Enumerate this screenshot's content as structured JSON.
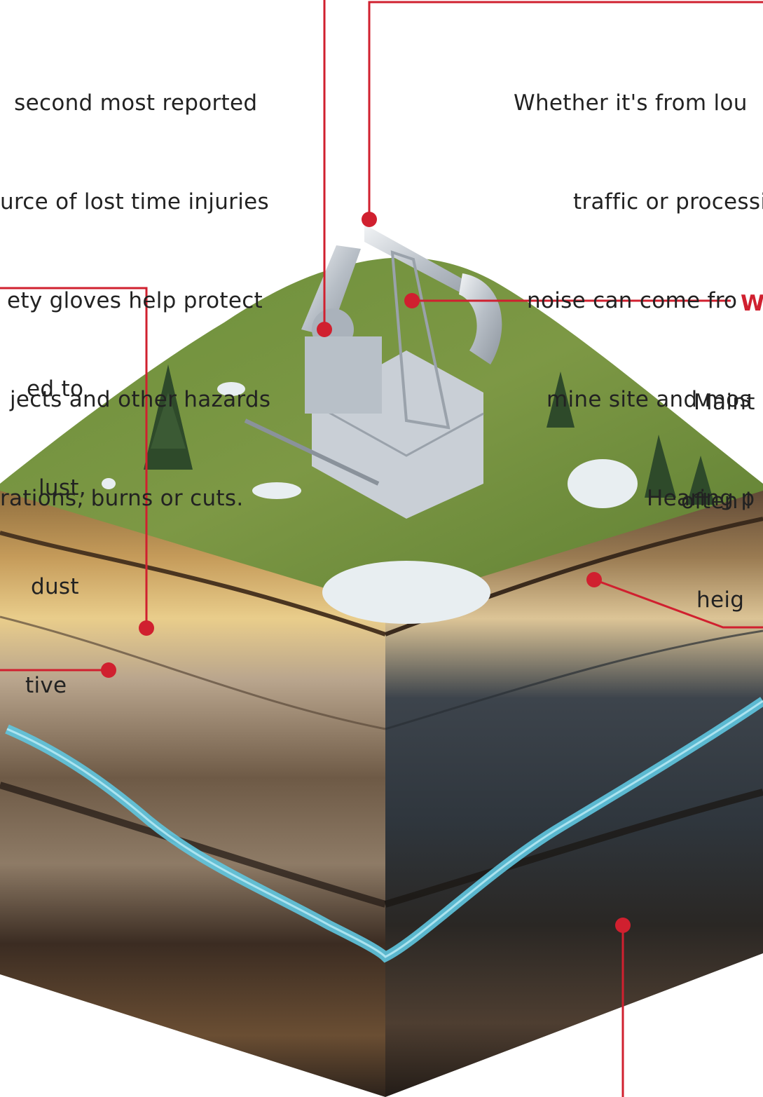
{
  "gloves_callout": {
    "lines": [
      " second most reported",
      "urce of lost time injuries",
      "ety gloves help protect",
      "jects and other hazards",
      "rations, burns or cuts."
    ]
  },
  "hearing_callout": {
    "lines": [
      "Whether it's from lou",
      "traffic or processi",
      "noise can come fro",
      "mine site and mos",
      "Hearing p"
    ]
  },
  "dust_callout": {
    "lines": [
      "ed to",
      "lust,",
      "dust",
      "tive"
    ]
  },
  "heights_callout": {
    "heading": "W",
    "lines": [
      "Maint",
      "often l",
      "heig"
    ]
  },
  "colors": {
    "accent": "#d0202f",
    "text": "#222222",
    "background": "#ffffff"
  },
  "illustration": {
    "subject": "isometric soil-layer cube with oil pump jack, trees and grass on top, aquifer water band"
  }
}
